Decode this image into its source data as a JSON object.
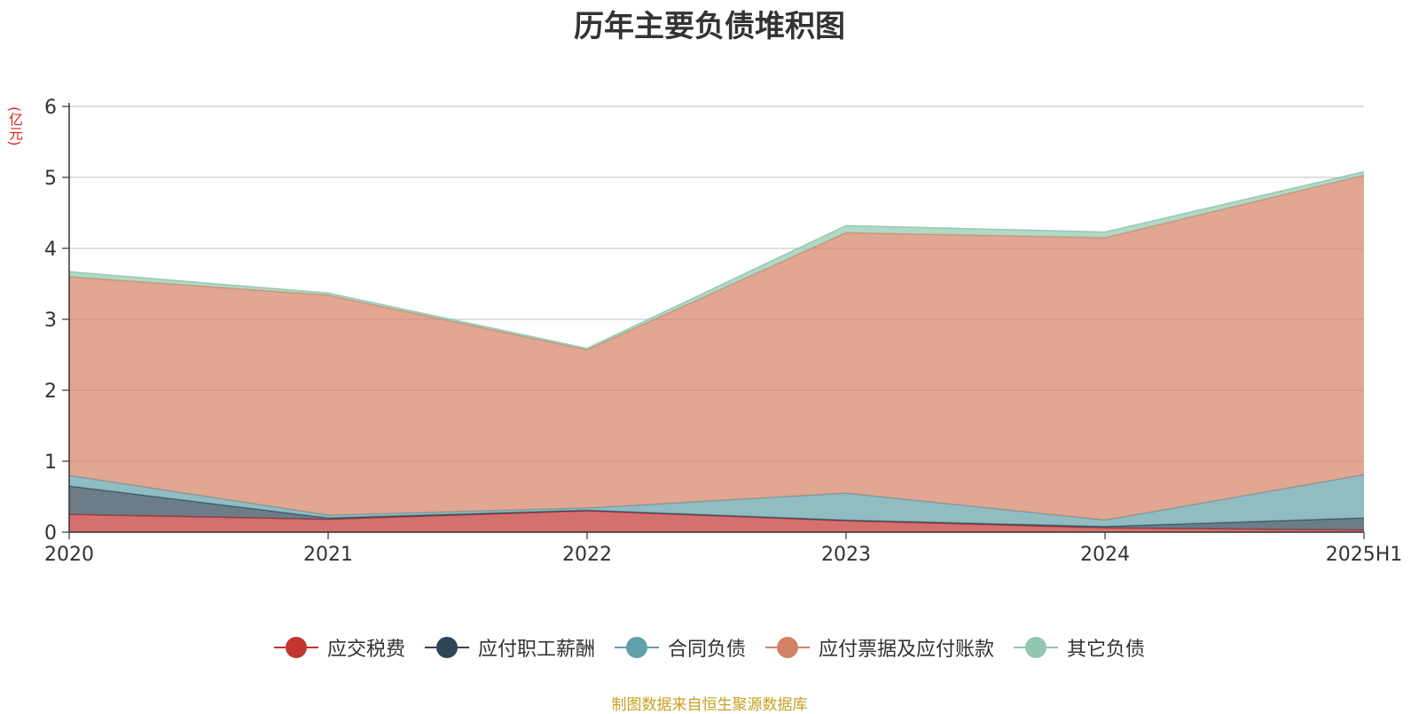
{
  "chart_data": {
    "type": "area",
    "stacked": true,
    "title": "历年主要负债堆积图",
    "unit_label": "(亿元)",
    "categories": [
      "2020",
      "2021",
      "2022",
      "2023",
      "2024",
      "2025H1"
    ],
    "ylim": [
      0,
      6
    ],
    "yticks": [
      "0",
      "1",
      "2",
      "3",
      "4",
      "5",
      "6"
    ],
    "grid": true,
    "legend_position": "bottom",
    "series": [
      {
        "name": "应交税费",
        "color": "#c23531",
        "values": [
          0.25,
          0.18,
          0.3,
          0.16,
          0.06,
          0.03
        ]
      },
      {
        "name": "应付职工薪酬",
        "color": "#2f4554",
        "values": [
          0.4,
          0.02,
          0.01,
          0.01,
          0.02,
          0.17
        ]
      },
      {
        "name": "合同负债",
        "color": "#61a0a8",
        "values": [
          0.15,
          0.04,
          0.03,
          0.38,
          0.09,
          0.61
        ]
      },
      {
        "name": "应付票据及应付账款",
        "color": "#d48265",
        "values": [
          2.8,
          3.1,
          2.23,
          3.67,
          3.98,
          4.22
        ]
      },
      {
        "name": "其它负债",
        "color": "#91c7ae",
        "values": [
          0.07,
          0.03,
          0.02,
          0.1,
          0.08,
          0.05
        ]
      }
    ]
  },
  "source_note": "制图数据来自恒生聚源数据库"
}
